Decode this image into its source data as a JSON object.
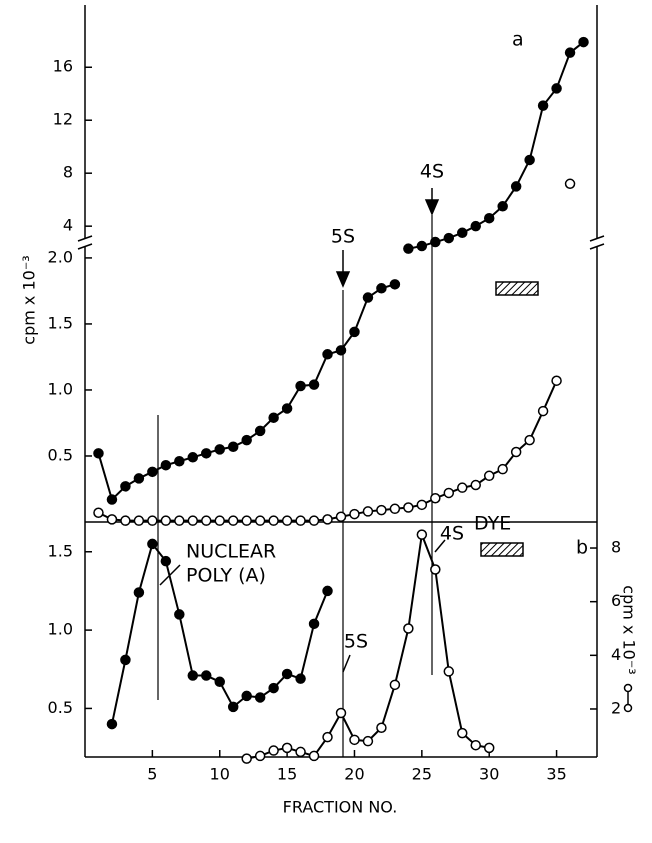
{
  "chart_data": [
    {
      "type": "line",
      "annotations": [
        "a",
        "4S"
      ],
      "xlim": [
        0,
        38
      ],
      "ylim": [
        2.2,
        20.7
      ],
      "yticks": [
        4,
        8,
        12,
        16
      ],
      "series": [
        {
          "color": "#000000",
          "marker": "filled",
          "x": [
            24,
            25,
            26,
            27,
            28,
            29,
            30,
            31,
            32,
            33,
            34,
            35,
            36,
            37
          ],
          "values": [
            2.3,
            2.5,
            2.8,
            3.1,
            3.5,
            4.0,
            4.6,
            5.5,
            7.0,
            9.0,
            13.1,
            14.4,
            17.1,
            17.9
          ]
        },
        {
          "color": "#000000",
          "marker": "open",
          "x": [
            36
          ],
          "values": [
            7.2
          ]
        }
      ]
    },
    {
      "type": "line",
      "annotations": [
        "5S"
      ],
      "ylabel": "cpm x 10⁻³",
      "xlim": [
        0,
        38
      ],
      "ylim": [
        0,
        2.06
      ],
      "yticks": [
        0.5,
        {
          "value": 1.0,
          "label": "1.0"
        },
        1.5,
        {
          "value": 2.0,
          "label": "2.0"
        }
      ],
      "series": [
        {
          "color": "#000000",
          "marker": "filled",
          "x": [
            1,
            2,
            3,
            4,
            5,
            6,
            7,
            8,
            9,
            10,
            11,
            12,
            13,
            14,
            15,
            16,
            17,
            18,
            19,
            20,
            21,
            22,
            23
          ],
          "values": [
            0.52,
            0.17,
            0.27,
            0.33,
            0.38,
            0.43,
            0.46,
            0.49,
            0.52,
            0.55,
            0.57,
            0.62,
            0.69,
            0.79,
            0.86,
            1.03,
            1.04,
            1.27,
            1.3,
            1.44,
            1.7,
            1.77,
            1.8
          ]
        },
        {
          "color": "#000000",
          "marker": "open",
          "x": [
            1,
            2,
            3,
            4,
            5,
            6,
            7,
            8,
            9,
            10,
            11,
            12,
            13,
            14,
            15,
            16,
            17,
            18,
            19,
            20,
            21,
            22,
            23,
            24,
            25,
            26,
            27,
            28,
            29,
            30,
            31,
            32,
            33,
            34,
            35
          ],
          "values": [
            0.07,
            0.02,
            0.01,
            0.01,
            0.01,
            0.01,
            0.01,
            0.01,
            0.01,
            0.01,
            0.01,
            0.01,
            0.01,
            0.01,
            0.01,
            0.01,
            0.01,
            0.02,
            0.04,
            0.06,
            0.08,
            0.09,
            0.1,
            0.11,
            0.13,
            0.18,
            0.22,
            0.26,
            0.28,
            0.35,
            0.4,
            0.53,
            0.62,
            0.84,
            1.07
          ]
        }
      ]
    },
    {
      "type": "line",
      "annotations": [
        "b",
        "NUCLEAR",
        "POLY (A)",
        "DYE",
        "5S",
        "4S"
      ],
      "xlabel": "FRACTION  NO.",
      "y2label": "cpm x 10⁻³",
      "xlim": [
        0,
        38
      ],
      "xticks": [
        5,
        10,
        15,
        20,
        25,
        30,
        35
      ],
      "ylim": [
        0.19,
        1.69
      ],
      "yticks": [
        0.5,
        {
          "value": 1.0,
          "label": "1.0"
        },
        1.5
      ],
      "y2lim": [
        0.21,
        8.97
      ],
      "y2ticks": [
        2,
        4,
        6,
        8
      ],
      "series": [
        {
          "color": "#000000",
          "marker": "filled",
          "x": [
            2,
            3,
            4,
            5,
            6,
            7,
            8,
            9,
            10,
            11,
            12,
            13,
            14,
            15,
            16,
            17,
            18
          ],
          "values": [
            0.4,
            0.81,
            1.24,
            1.55,
            1.44,
            1.1,
            0.71,
            0.71,
            0.67,
            0.51,
            0.58,
            0.57,
            0.63,
            0.72,
            0.69,
            1.04,
            1.25
          ]
        },
        {
          "color": "#000000",
          "marker": "open",
          "axis": "y2",
          "x": [
            12,
            13,
            14,
            15,
            16,
            17,
            18,
            19,
            20,
            21,
            22,
            23,
            24,
            25,
            26,
            27,
            28,
            29,
            30
          ],
          "values": [
            0.15,
            0.25,
            0.45,
            0.55,
            0.4,
            0.25,
            0.95,
            1.85,
            0.85,
            0.8,
            1.3,
            2.9,
            5.0,
            8.5,
            7.2,
            3.4,
            1.1,
            0.65,
            0.55
          ]
        }
      ]
    }
  ]
}
